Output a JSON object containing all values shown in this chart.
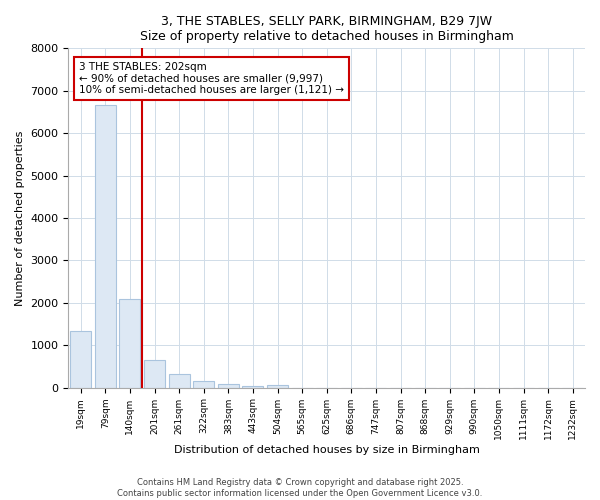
{
  "title": "3, THE STABLES, SELLY PARK, BIRMINGHAM, B29 7JW",
  "subtitle": "Size of property relative to detached houses in Birmingham",
  "xlabel": "Distribution of detached houses by size in Birmingham",
  "ylabel": "Number of detached properties",
  "categories": [
    "19sqm",
    "79sqm",
    "140sqm",
    "201sqm",
    "261sqm",
    "322sqm",
    "383sqm",
    "443sqm",
    "504sqm",
    "565sqm",
    "625sqm",
    "686sqm",
    "747sqm",
    "807sqm",
    "868sqm",
    "929sqm",
    "990sqm",
    "1050sqm",
    "1111sqm",
    "1172sqm",
    "1232sqm"
  ],
  "values": [
    1340,
    6670,
    2100,
    650,
    310,
    150,
    80,
    45,
    55,
    0,
    0,
    0,
    0,
    0,
    0,
    0,
    0,
    0,
    0,
    0,
    0
  ],
  "bar_color": "#dde8f4",
  "bar_edge_color": "#aac4de",
  "vline_x_index": 2,
  "vline_color": "#cc0000",
  "annotation_text": "3 THE STABLES: 202sqm\n← 90% of detached houses are smaller (9,997)\n10% of semi-detached houses are larger (1,121) →",
  "annotation_box_edgecolor": "#cc0000",
  "annotation_box_facecolor": "#ffffff",
  "ylim": [
    0,
    8000
  ],
  "yticks": [
    0,
    1000,
    2000,
    3000,
    4000,
    5000,
    6000,
    7000,
    8000
  ],
  "bg_color": "#ffffff",
  "plot_bg_color": "#ffffff",
  "grid_color": "#d0dce8",
  "footer_line1": "Contains HM Land Registry data © Crown copyright and database right 2025.",
  "footer_line2": "Contains public sector information licensed under the Open Government Licence v3.0."
}
